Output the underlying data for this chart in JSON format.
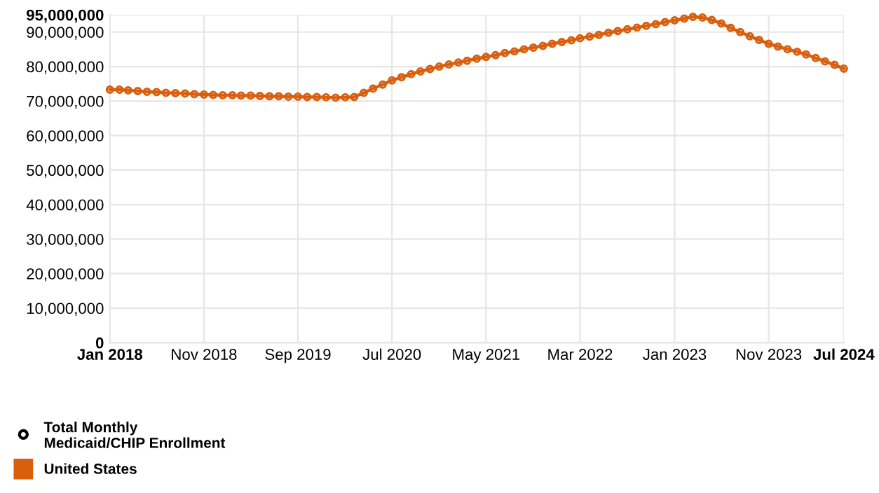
{
  "chart_data": {
    "type": "line",
    "x": [
      "2018-01",
      "2018-02",
      "2018-03",
      "2018-04",
      "2018-05",
      "2018-06",
      "2018-07",
      "2018-08",
      "2018-09",
      "2018-10",
      "2018-11",
      "2018-12",
      "2019-01",
      "2019-02",
      "2019-03",
      "2019-04",
      "2019-05",
      "2019-06",
      "2019-07",
      "2019-08",
      "2019-09",
      "2019-10",
      "2019-11",
      "2019-12",
      "2020-01",
      "2020-02",
      "2020-03",
      "2020-04",
      "2020-05",
      "2020-06",
      "2020-07",
      "2020-08",
      "2020-09",
      "2020-10",
      "2020-11",
      "2020-12",
      "2021-01",
      "2021-02",
      "2021-03",
      "2021-04",
      "2021-05",
      "2021-06",
      "2021-07",
      "2021-08",
      "2021-09",
      "2021-10",
      "2021-11",
      "2021-12",
      "2022-01",
      "2022-02",
      "2022-03",
      "2022-04",
      "2022-05",
      "2022-06",
      "2022-07",
      "2022-08",
      "2022-09",
      "2022-10",
      "2022-11",
      "2022-12",
      "2023-01",
      "2023-02",
      "2023-03",
      "2023-04",
      "2023-05",
      "2023-06",
      "2023-07",
      "2023-08",
      "2023-09",
      "2023-10",
      "2023-11",
      "2023-12",
      "2024-01",
      "2024-02",
      "2024-03",
      "2024-04",
      "2024-05",
      "2024-06",
      "2024-07"
    ],
    "series": [
      {
        "name": "United States",
        "color": "#d95f0e",
        "values": [
          73300000,
          73300000,
          73100000,
          72900000,
          72700000,
          72600000,
          72400000,
          72300000,
          72200000,
          72000000,
          71900000,
          71800000,
          71700000,
          71700000,
          71600000,
          71600000,
          71500000,
          71400000,
          71400000,
          71300000,
          71300000,
          71200000,
          71200000,
          71100000,
          71000000,
          71100000,
          71200000,
          72400000,
          73600000,
          74800000,
          76000000,
          76900000,
          77800000,
          78600000,
          79300000,
          80000000,
          80600000,
          81200000,
          81700000,
          82300000,
          82800000,
          83300000,
          83900000,
          84400000,
          85000000,
          85500000,
          86000000,
          86600000,
          87100000,
          87600000,
          88200000,
          88700000,
          89200000,
          89800000,
          90300000,
          90800000,
          91300000,
          91800000,
          92300000,
          92900000,
          93400000,
          93900000,
          94400000,
          94200000,
          93500000,
          92500000,
          91200000,
          90000000,
          88800000,
          87700000,
          86600000,
          85800000,
          85000000,
          84300000,
          83500000,
          82500000,
          81500000,
          80500000,
          79400000
        ]
      }
    ],
    "legend_title": "Total Monthly\nMedicaid/CHIP Enrollment",
    "xlim": [
      "2018-01",
      "2024-07"
    ],
    "xticks": [
      {
        "value": "2018-01",
        "label": "Jan 2018"
      },
      {
        "value": "2018-11",
        "label": "Nov 2018"
      },
      {
        "value": "2019-09",
        "label": "Sep 2019"
      },
      {
        "value": "2020-07",
        "label": "Jul 2020"
      },
      {
        "value": "2021-05",
        "label": "May 2021"
      },
      {
        "value": "2022-03",
        "label": "Mar 2022"
      },
      {
        "value": "2023-01",
        "label": "Jan 2023"
      },
      {
        "value": "2023-11",
        "label": "Nov 2023"
      },
      {
        "value": "2024-07",
        "label": "Jul 2024"
      }
    ],
    "ylim": [
      0,
      95000000
    ],
    "yticks": [
      0,
      {
        "value": 10000000,
        "label": "10,000,000"
      },
      {
        "value": 20000000,
        "label": "20,000,000"
      },
      {
        "value": 30000000,
        "label": "30,000,000"
      },
      {
        "value": 40000000,
        "label": "40,000,000"
      },
      {
        "value": 50000000,
        "label": "50,000,000"
      },
      {
        "value": 60000000,
        "label": "60,000,000"
      },
      {
        "value": 70000000,
        "label": "70,000,000"
      },
      {
        "value": 80000000,
        "label": "80,000,000"
      },
      {
        "value": 90000000,
        "label": "90,000,000"
      },
      {
        "value": 95000000,
        "label": "95,000,000"
      }
    ],
    "grid": true,
    "legend": "bottom left",
    "marker": "circle",
    "line_style": "solid"
  }
}
